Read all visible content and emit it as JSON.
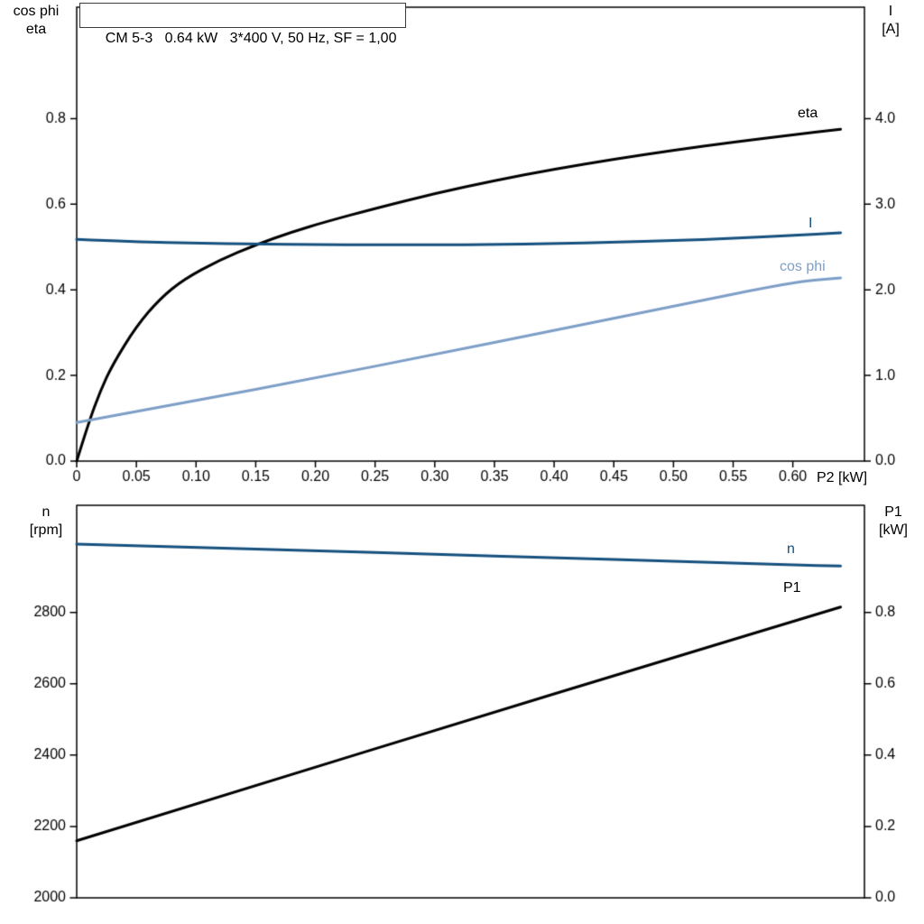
{
  "title_box": {
    "text": "CM 5-3   0.64 kW   3*400 V, 50 Hz, SF = 1,00"
  },
  "labels": {
    "top_left": [
      "cos phi",
      "eta"
    ],
    "top_right": [
      "I",
      "[A]"
    ],
    "bottom_left": [
      "n",
      "[rpm]"
    ],
    "bottom_right": [
      "P1",
      "[kW]"
    ],
    "x_axis": "P2 [kW]",
    "curve_eta": "eta",
    "curve_I": "I",
    "curve_cosphi": "cos phi",
    "curve_n": "n",
    "curve_P1": "P1"
  },
  "colors": {
    "frame": "#000000",
    "text": "#000000",
    "black_curve": "#000000",
    "dark_blue": "#15507e",
    "light_blue": "#7d9ec7"
  },
  "chart_data": [
    {
      "type": "line",
      "title": "CM 5-3  0.64 kW  3*400 V, 50 Hz, SF = 1,00",
      "grid": false,
      "x_axis": {
        "label": "P2 [kW]",
        "min": 0,
        "max": 0.66,
        "tick_values": [
          0,
          0.05,
          0.1,
          0.15,
          0.2,
          0.25,
          0.3,
          0.35,
          0.4,
          0.45,
          0.5,
          0.55,
          0.6
        ],
        "tick_labels": [
          "0",
          "0.05",
          "0.10",
          "0.15",
          "0.20",
          "0.25",
          "0.30",
          "0.35",
          "0.40",
          "0.45",
          "0.50",
          "0.55",
          "0.60"
        ]
      },
      "left_axis": {
        "label": "cos phi / eta",
        "min": 0,
        "max": 1.06,
        "tick_values": [
          0,
          0.2,
          0.4,
          0.6,
          0.8
        ],
        "tick_labels": [
          "0.0",
          "0.2",
          "0.4",
          "0.6",
          "0.8"
        ]
      },
      "right_axis": {
        "label": "I [A]",
        "min": 0,
        "max": 5.3,
        "tick_values": [
          0,
          1,
          2,
          3,
          4
        ],
        "tick_labels": [
          "0.0",
          "1.0",
          "2.0",
          "3.0",
          "4.0"
        ]
      },
      "series": [
        {
          "name": "eta",
          "axis": "left",
          "color_key": "black_curve",
          "points": [
            [
              0,
              0
            ],
            [
              0.01,
              0.09
            ],
            [
              0.02,
              0.165
            ],
            [
              0.03,
              0.225
            ],
            [
              0.05,
              0.315
            ],
            [
              0.07,
              0.38
            ],
            [
              0.09,
              0.425
            ],
            [
              0.12,
              0.47
            ],
            [
              0.15,
              0.505
            ],
            [
              0.18,
              0.535
            ],
            [
              0.21,
              0.56
            ],
            [
              0.25,
              0.59
            ],
            [
              0.3,
              0.625
            ],
            [
              0.35,
              0.655
            ],
            [
              0.4,
              0.682
            ],
            [
              0.45,
              0.705
            ],
            [
              0.5,
              0.726
            ],
            [
              0.55,
              0.745
            ],
            [
              0.6,
              0.762
            ],
            [
              0.64,
              0.775
            ]
          ]
        },
        {
          "name": "I",
          "axis": "right",
          "color_key": "dark_blue",
          "points": [
            [
              0,
              2.59
            ],
            [
              0.05,
              2.56
            ],
            [
              0.1,
              2.545
            ],
            [
              0.15,
              2.535
            ],
            [
              0.2,
              2.53
            ],
            [
              0.25,
              2.525
            ],
            [
              0.3,
              2.525
            ],
            [
              0.35,
              2.53
            ],
            [
              0.4,
              2.54
            ],
            [
              0.45,
              2.555
            ],
            [
              0.5,
              2.575
            ],
            [
              0.55,
              2.6
            ],
            [
              0.6,
              2.635
            ],
            [
              0.64,
              2.665
            ]
          ]
        },
        {
          "name": "cos phi",
          "axis": "left",
          "color_key": "light_blue",
          "points": [
            [
              0,
              0.09
            ],
            [
              0.1,
              0.141
            ],
            [
              0.2,
              0.194
            ],
            [
              0.3,
              0.249
            ],
            [
              0.4,
              0.305
            ],
            [
              0.5,
              0.362
            ],
            [
              0.6,
              0.418
            ],
            [
              0.64,
              0.428
            ]
          ]
        }
      ]
    },
    {
      "type": "line",
      "title": "",
      "grid": false,
      "x_axis": {
        "label": "",
        "min": 0,
        "max": 0.66,
        "tick_values": [],
        "tick_labels": []
      },
      "left_axis": {
        "label": "n [rpm]",
        "min": 2000,
        "max": 3100,
        "tick_values": [
          2000,
          2200,
          2400,
          2600,
          2800
        ],
        "tick_labels": [
          "2000",
          "2200",
          "2400",
          "2600",
          "2800"
        ]
      },
      "right_axis": {
        "label": "P1 [kW]",
        "min": 0,
        "max": 1.1,
        "tick_values": [
          0,
          0.2,
          0.4,
          0.6,
          0.8
        ],
        "tick_labels": [
          "0.0",
          "0.2",
          "0.4",
          "0.6",
          "0.8"
        ]
      },
      "series": [
        {
          "name": "n",
          "axis": "left",
          "color_key": "dark_blue",
          "points": [
            [
              0,
              2991
            ],
            [
              0.1,
              2982
            ],
            [
              0.2,
              2973
            ],
            [
              0.3,
              2963
            ],
            [
              0.4,
              2953
            ],
            [
              0.5,
              2943
            ],
            [
              0.6,
              2933
            ],
            [
              0.64,
              2930
            ]
          ]
        },
        {
          "name": "P1",
          "axis": "right",
          "color_key": "black_curve",
          "points": [
            [
              0,
              0.16
            ],
            [
              0.16,
              0.325
            ],
            [
              0.32,
              0.49
            ],
            [
              0.48,
              0.653
            ],
            [
              0.64,
              0.815
            ]
          ]
        }
      ]
    }
  ]
}
